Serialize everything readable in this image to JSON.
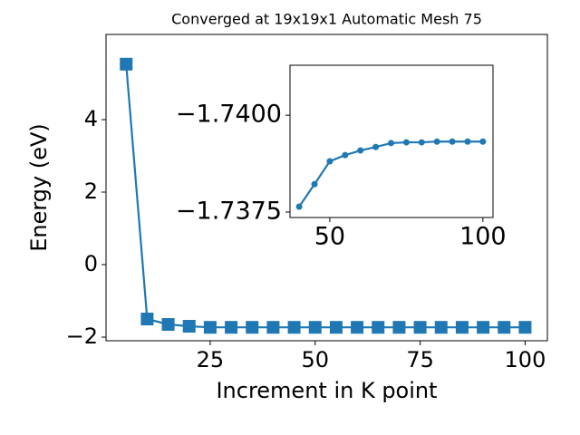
{
  "chart_data": [
    {
      "type": "line",
      "title": "Converged at 19x19x1 Automatic Mesh 75",
      "xlabel": "Increment in K point",
      "ylabel": "Energy (eV)",
      "marker": "square",
      "color": "#1f77b4",
      "x": [
        5,
        10,
        15,
        20,
        25,
        30,
        35,
        40,
        45,
        50,
        55,
        60,
        65,
        70,
        75,
        80,
        85,
        90,
        95,
        100
      ],
      "values": [
        5.53,
        -1.5,
        -1.65,
        -1.7,
        -1.73,
        -1.73,
        -1.73,
        -1.73,
        -1.73,
        -1.73,
        -1.73,
        -1.73,
        -1.73,
        -1.73,
        -1.73,
        -1.73,
        -1.73,
        -1.73,
        -1.73,
        -1.73
      ],
      "xlim": [
        0.2,
        105.3
      ],
      "ylim": [
        -2.1,
        6.35
      ],
      "xticks": [
        25,
        50,
        75,
        100
      ],
      "yticks": [
        {
          "value": -2,
          "label": "−2"
        },
        0,
        2,
        4
      ]
    },
    {
      "type": "line",
      "marker": "circle",
      "color": "#1f77b4",
      "x": [
        40,
        45,
        50,
        55,
        60,
        65,
        70,
        75,
        80,
        85,
        90,
        95,
        100
      ],
      "values": [
        -1.73764,
        -1.73822,
        -1.73881,
        -1.73897,
        -1.73909,
        -1.73918,
        -1.73928,
        -1.7393,
        -1.7393,
        -1.73932,
        -1.73932,
        -1.73932,
        -1.73932
      ],
      "xlim": [
        37,
        103.3
      ],
      "ylim": [
        -1.73736,
        -1.74129
      ],
      "xticks": [
        50,
        100
      ],
      "yticks": [
        {
          "value": -1.74,
          "label": "−1.7400"
        },
        {
          "value": -1.7375,
          "label": "−1.7375"
        }
      ]
    }
  ]
}
